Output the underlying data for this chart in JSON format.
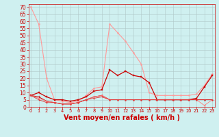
{
  "xlabel": "Vent moyen/en rafales ( km/h )",
  "bg_color": "#cff0f0",
  "grid_color": "#b0c8c8",
  "x_ticks": [
    0,
    1,
    2,
    3,
    4,
    5,
    6,
    7,
    8,
    9,
    10,
    11,
    12,
    13,
    14,
    15,
    16,
    17,
    18,
    19,
    20,
    21,
    22,
    23
  ],
  "y_ticks": [
    0,
    5,
    10,
    15,
    20,
    25,
    30,
    35,
    40,
    45,
    50,
    55,
    60,
    65,
    70
  ],
  "ylim": [
    0,
    72
  ],
  "xlim": [
    -0.3,
    23.3
  ],
  "line1_x": [
    0,
    1,
    2,
    3,
    4,
    5,
    6,
    7,
    8,
    9,
    10,
    11,
    12,
    13,
    14,
    15,
    16,
    17,
    18,
    19,
    20,
    21,
    22,
    23
  ],
  "line1_y": [
    70,
    58,
    20,
    5,
    4,
    3,
    4,
    8,
    13,
    14,
    58,
    52,
    46,
    38,
    30,
    10,
    8,
    8,
    8,
    8,
    8,
    9,
    15,
    23
  ],
  "line1_color": "#ff9999",
  "line1_lw": 0.8,
  "line2_x": [
    0,
    1,
    2,
    3,
    4,
    5,
    6,
    7,
    8,
    9,
    10,
    11,
    12,
    13,
    14,
    15,
    16,
    17,
    18,
    19,
    20,
    21,
    22,
    23
  ],
  "line2_y": [
    8,
    10,
    7,
    5,
    5,
    4,
    5,
    7,
    11,
    12,
    26,
    22,
    25,
    22,
    21,
    17,
    5,
    5,
    5,
    5,
    5,
    6,
    14,
    22
  ],
  "line2_color": "#cc0000",
  "line2_lw": 0.9,
  "line3_x": [
    0,
    1,
    2,
    3,
    4,
    5,
    6,
    7,
    8,
    9,
    10,
    11,
    12,
    13,
    14,
    15,
    16,
    17,
    18,
    19,
    20,
    21,
    22,
    23
  ],
  "line3_y": [
    8,
    7,
    4,
    3,
    2,
    2,
    3,
    5,
    7,
    8,
    5,
    5,
    5,
    5,
    5,
    5,
    5,
    5,
    5,
    5,
    5,
    5,
    5,
    5
  ],
  "line3_color": "#cc0000",
  "line3_lw": 0.7,
  "line4_x": [
    0,
    1,
    2,
    3,
    4,
    5,
    6,
    7,
    8,
    9,
    10,
    11,
    12,
    13,
    14,
    15,
    16,
    17,
    18,
    19,
    20,
    21,
    22,
    23
  ],
  "line4_y": [
    8,
    6,
    4,
    3,
    2,
    2,
    3,
    5,
    7,
    8,
    5,
    5,
    5,
    5,
    5,
    5,
    5,
    5,
    5,
    5,
    5,
    5,
    1,
    5
  ],
  "line4_color": "#ff7777",
  "line4_lw": 0.6,
  "line5_x": [
    0,
    1,
    2,
    3,
    4,
    5,
    6,
    7,
    8,
    9,
    10,
    11,
    12,
    13,
    14,
    15,
    16,
    17,
    18,
    19,
    20,
    21,
    22,
    23
  ],
  "line5_y": [
    8,
    5,
    3,
    3,
    2,
    2,
    3,
    5,
    6,
    7,
    5,
    5,
    5,
    5,
    5,
    5,
    5,
    5,
    5,
    5,
    5,
    5,
    5,
    5
  ],
  "line5_color": "#dd3333",
  "line5_lw": 0.6,
  "xlabel_color": "#cc0000",
  "tick_color": "#cc0000",
  "xlabel_fontsize": 7.0,
  "ytick_fontsize": 5.5,
  "xtick_fontsize": 4.8,
  "spine_color": "#cc0000"
}
